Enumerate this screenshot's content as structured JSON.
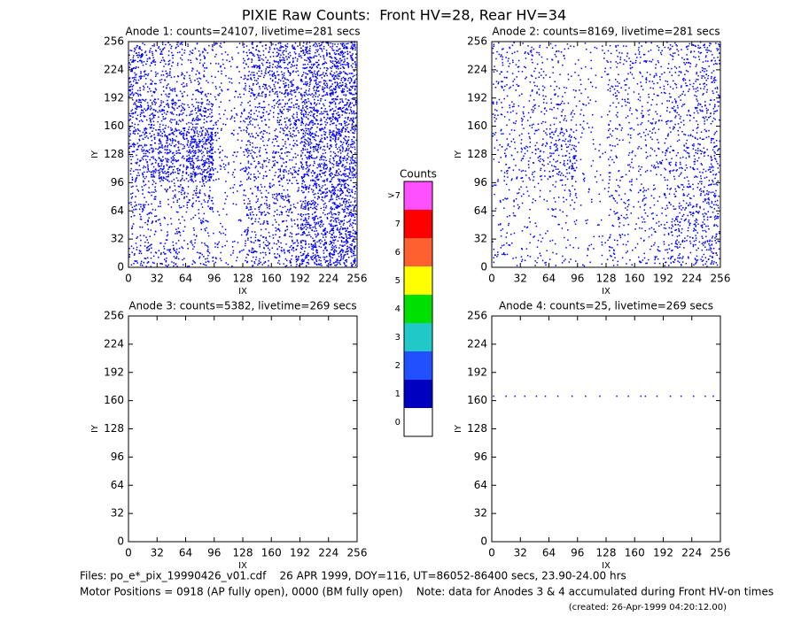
{
  "title": "PIXIE Raw Counts:  Front HV=28, Rear HV=34",
  "chart_data": [
    {
      "type": "heatmap",
      "title": "Anode 1: counts=24107, livetime=281 secs",
      "xlabel": "IX",
      "ylabel": "IY",
      "xlim": [
        0,
        256
      ],
      "ylim": [
        0,
        256
      ],
      "xticks": [
        0,
        32,
        64,
        96,
        128,
        160,
        192,
        224,
        256
      ],
      "yticks": [
        0,
        32,
        64,
        96,
        128,
        160,
        192,
        224,
        256
      ],
      "color": "#0000ff",
      "density": [
        [
          0.2,
          0.2,
          0.15,
          0.1,
          0.25,
          0.25,
          0.45,
          0.55
        ],
        [
          0.15,
          0.1,
          0.1,
          0.05,
          0.2,
          0.2,
          0.4,
          0.5
        ],
        [
          0.2,
          0.15,
          0.2,
          0.05,
          0.2,
          0.2,
          0.4,
          0.5
        ],
        [
          0.3,
          0.4,
          0.6,
          0.1,
          0.2,
          0.25,
          0.45,
          0.5
        ],
        [
          0.35,
          0.45,
          0.6,
          0.1,
          0.2,
          0.25,
          0.45,
          0.5
        ],
        [
          0.35,
          0.3,
          0.3,
          0.1,
          0.2,
          0.3,
          0.45,
          0.5
        ],
        [
          0.3,
          0.2,
          0.15,
          0.1,
          0.3,
          0.35,
          0.45,
          0.5
        ],
        [
          0.3,
          0.2,
          0.15,
          0.1,
          0.3,
          0.35,
          0.4,
          0.5
        ]
      ]
    },
    {
      "type": "heatmap",
      "title": "Anode 2: counts=8169, livetime=281 secs",
      "xlabel": "IX",
      "ylabel": "IY",
      "xlim": [
        0,
        256
      ],
      "ylim": [
        0,
        256
      ],
      "xticks": [
        0,
        32,
        64,
        96,
        128,
        160,
        192,
        224,
        256
      ],
      "yticks": [
        0,
        32,
        64,
        96,
        128,
        160,
        192,
        224,
        256
      ],
      "color": "#0000ff",
      "density": [
        [
          0.08,
          0.08,
          0.06,
          0.05,
          0.1,
          0.1,
          0.2,
          0.25
        ],
        [
          0.06,
          0.05,
          0.05,
          0.03,
          0.1,
          0.1,
          0.2,
          0.25
        ],
        [
          0.08,
          0.06,
          0.1,
          0.03,
          0.1,
          0.1,
          0.2,
          0.22
        ],
        [
          0.1,
          0.15,
          0.25,
          0.05,
          0.1,
          0.1,
          0.15,
          0.2
        ],
        [
          0.1,
          0.15,
          0.25,
          0.05,
          0.1,
          0.1,
          0.15,
          0.2
        ],
        [
          0.12,
          0.12,
          0.12,
          0.05,
          0.1,
          0.12,
          0.15,
          0.2
        ],
        [
          0.12,
          0.1,
          0.08,
          0.05,
          0.12,
          0.12,
          0.15,
          0.2
        ],
        [
          0.12,
          0.1,
          0.08,
          0.05,
          0.12,
          0.12,
          0.15,
          0.2
        ]
      ]
    },
    {
      "type": "heatmap",
      "title": "Anode 3: counts=5382, livetime=269 secs",
      "xlabel": "IX",
      "ylabel": "IY",
      "xlim": [
        0,
        256
      ],
      "ylim": [
        0,
        256
      ],
      "xticks": [
        0,
        32,
        64,
        96,
        128,
        160,
        192,
        224,
        256
      ],
      "yticks": [
        0,
        32,
        64,
        96,
        128,
        160,
        192,
        224,
        256
      ],
      "color": "#0000ff"
    },
    {
      "type": "scatter",
      "title": "Anode 4: counts=25, livetime=269 secs",
      "xlabel": "IX",
      "ylabel": "IY",
      "xlim": [
        0,
        256
      ],
      "ylim": [
        0,
        256
      ],
      "xticks": [
        0,
        32,
        64,
        96,
        128,
        160,
        192,
        224,
        256
      ],
      "yticks": [
        0,
        32,
        64,
        96,
        128,
        160,
        192,
        224,
        256
      ],
      "color": "#0000ff",
      "x": [
        2,
        16,
        26,
        37,
        50,
        60,
        74,
        90,
        105,
        121,
        140,
        153,
        167,
        172,
        185,
        200,
        212,
        226,
        239,
        248
      ],
      "y": [
        165,
        165,
        165,
        165,
        165,
        165,
        165,
        165,
        165,
        165,
        165,
        165,
        165,
        165,
        165,
        165,
        165,
        165,
        165,
        165
      ]
    }
  ],
  "colorbar": {
    "title": "Counts",
    "labels": [
      0,
      1,
      2,
      3,
      4,
      5,
      6,
      7,
      ">7"
    ],
    "colors": [
      "#ffffff",
      "#0000c0",
      "#2050ff",
      "#20c8c8",
      "#00e000",
      "#ffff00",
      "#ff6030",
      "#ff0000",
      "#ff50ff"
    ]
  },
  "footer": {
    "files": "Files: po_e*_pix_19990426_v01.cdf    26 APR 1999, DOY=116, UT=86052-86400 secs, 23.90-24.00 hrs",
    "motor": "Motor Positions = 0918 (AP fully open), 0000 (BM fully open)    Note: data for Anodes 3 & 4 accumulated during Front HV-on times",
    "created": "(created: 26-Apr-1999 04:20:12.00)"
  }
}
